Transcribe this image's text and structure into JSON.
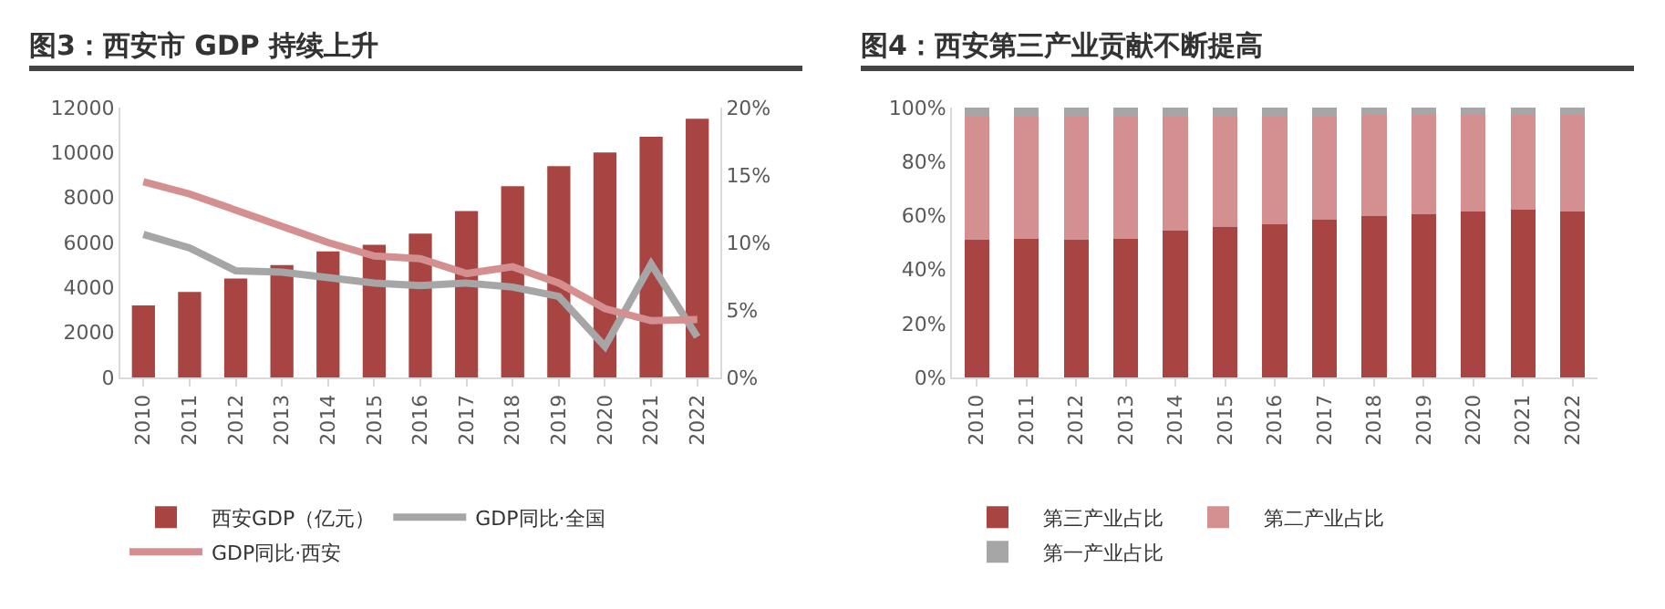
{
  "chart_data": [
    {
      "type": "bar",
      "title": "图3：西安市 GDP 持续上升",
      "categories": [
        "2010",
        "2011",
        "2012",
        "2013",
        "2014",
        "2015",
        "2016",
        "2017",
        "2018",
        "2019",
        "2020",
        "2021",
        "2022"
      ],
      "series": [
        {
          "name": "西安GDP（亿元）",
          "color": "#a84442",
          "values": [
            3200,
            3800,
            4400,
            5000,
            5600,
            5900,
            6400,
            7400,
            8500,
            9400,
            10000,
            10700,
            11500
          ]
        },
        {
          "name": "GDP同比·全国",
          "type": "line",
          "axis": "y2",
          "color": "#a6a6a6",
          "values": [
            10.6,
            9.6,
            7.9,
            7.8,
            7.4,
            7.0,
            6.8,
            7.0,
            6.7,
            6.0,
            2.3,
            8.4,
            3.0
          ]
        },
        {
          "name": "GDP同比·西安",
          "type": "line",
          "axis": "y2",
          "color": "#d49090",
          "values": [
            14.5,
            13.6,
            12.4,
            11.2,
            10.0,
            9.0,
            8.8,
            7.7,
            8.2,
            7.0,
            5.1,
            4.2,
            4.3
          ]
        }
      ],
      "ylim": [
        0,
        12000
      ],
      "yticks": [
        0,
        2000,
        4000,
        6000,
        8000,
        10000,
        12000
      ],
      "y2lim": [
        0,
        20
      ],
      "y2ticks": [
        {
          "value": 0,
          "label": "0%"
        },
        {
          "value": 5,
          "label": "5%"
        },
        {
          "value": 10,
          "label": "10%"
        },
        {
          "value": 15,
          "label": "15%"
        },
        {
          "value": 20,
          "label": "20%"
        }
      ],
      "legend": "bottom"
    },
    {
      "type": "bar",
      "title": "图4：西安第三产业贡献不断提高",
      "stacked": true,
      "categories": [
        "2010",
        "2011",
        "2012",
        "2013",
        "2014",
        "2015",
        "2016",
        "2017",
        "2018",
        "2019",
        "2020",
        "2021",
        "2022"
      ],
      "series": [
        {
          "name": "第三产业占比",
          "color": "#a84442",
          "values": [
            51.0,
            51.4,
            51.0,
            51.4,
            54.4,
            55.6,
            56.8,
            58.6,
            59.8,
            60.4,
            61.6,
            62.2,
            61.6
          ]
        },
        {
          "name": "第二产业占比",
          "color": "#d49090",
          "values": [
            46.0,
            45.6,
            45.5,
            45.1,
            42.3,
            41.4,
            40.2,
            38.4,
            37.5,
            36.9,
            35.7,
            35.1,
            35.7
          ]
        },
        {
          "name": "第一产业占比",
          "color": "#a6a6a6",
          "values": [
            3.0,
            3.0,
            3.5,
            3.5,
            3.3,
            3.0,
            3.0,
            3.0,
            2.7,
            2.7,
            2.7,
            2.7,
            2.7
          ]
        }
      ],
      "ylim": [
        0,
        100
      ],
      "yticks": [
        {
          "value": 0,
          "label": "0%"
        },
        {
          "value": 20,
          "label": "20%"
        },
        {
          "value": 40,
          "label": "40%"
        },
        {
          "value": 60,
          "label": "60%"
        },
        {
          "value": 80,
          "label": "80%"
        },
        {
          "value": 100,
          "label": "100%"
        }
      ],
      "legend": "bottom"
    }
  ]
}
